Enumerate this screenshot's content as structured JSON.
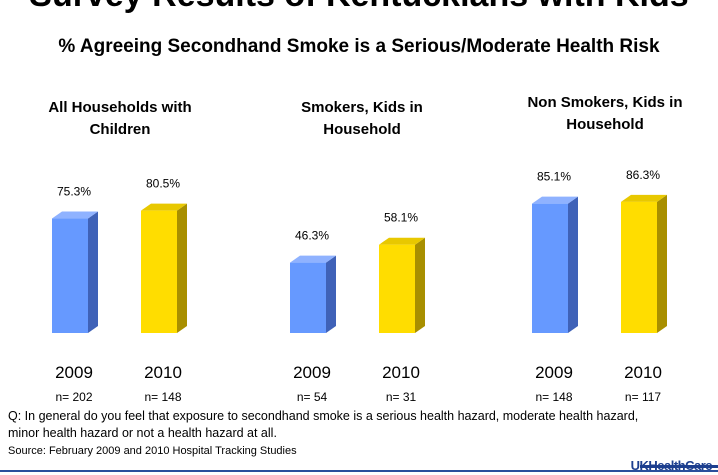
{
  "header": {
    "title": "Survey Results of Kentuckians with Kids",
    "subtitle": "% Agreeing Secondhand Smoke is a Serious/Moderate Health Risk"
  },
  "chart_data": {
    "type": "bar",
    "title": "% Agreeing Secondhand Smoke is a Serious/Moderate Health Risk",
    "categories": [
      "All Households with Children",
      "Smokers, Kids in Household",
      "Non Smokers, Kids in Household"
    ],
    "groups": [
      {
        "name": "All Households with Children",
        "bars": [
          {
            "x": "2009",
            "value": 75.3,
            "label": "75.3%",
            "n": "n= 202"
          },
          {
            "x": "2010",
            "value": 80.5,
            "label": "80.5%",
            "n": "n= 148"
          }
        ]
      },
      {
        "name": "Smokers, Kids in Household",
        "bars": [
          {
            "x": "2009",
            "value": 46.3,
            "label": "46.3%",
            "n": "n= 54"
          },
          {
            "x": "2010",
            "value": 58.1,
            "label": "58.1%",
            "n": "n= 31"
          }
        ]
      },
      {
        "name": "Non Smokers, Kids in Household",
        "bars": [
          {
            "x": "2009",
            "value": 85.1,
            "label": "85.1%",
            "n": "n= 148"
          },
          {
            "x": "2010",
            "value": 86.3,
            "label": "86.3%",
            "n": "n= 117"
          }
        ]
      }
    ],
    "colors": {
      "2009": "#6699ff",
      "2010": "#ffdd00"
    }
  },
  "footer": {
    "question": "Q: In general do you feel that exposure to secondhand smoke is a serious health hazard, moderate health hazard, minor health hazard or not a health hazard at all.",
    "source": "Source: February 2009 and 2010 Hospital Tracking Studies",
    "logo": "UKHealthCare"
  }
}
